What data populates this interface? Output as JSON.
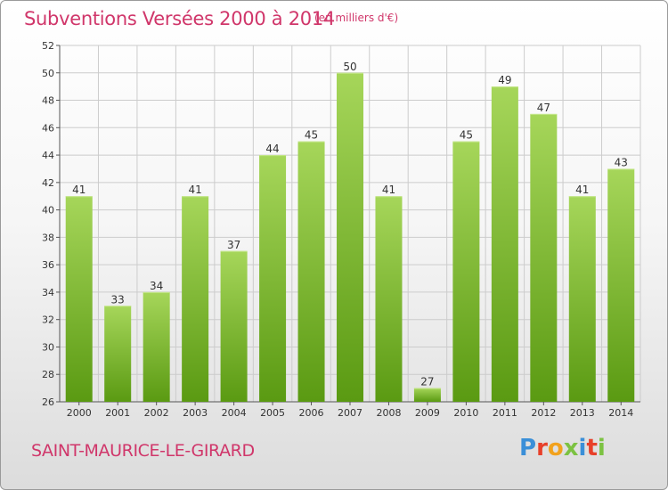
{
  "header": {
    "title": "Subventions Versées 2000 à 2014",
    "unit_note": "(en milliers d'€)"
  },
  "footer": {
    "commune": "SAINT-MAURICE-LE-GIRARD",
    "logo_text": "Proxiti",
    "logo_colors": [
      "#3a8fd8",
      "#e8402a",
      "#f2a21d",
      "#7cc242",
      "#3a8fd8",
      "#e8402a",
      "#7cc242"
    ]
  },
  "colors": {
    "title": "#d0366a",
    "bar_top": "#a6d65a",
    "bar_bottom": "#5a9a12",
    "grid": "#cccccc"
  },
  "chart_data": {
    "type": "bar",
    "categories": [
      "2000",
      "2001",
      "2002",
      "2003",
      "2004",
      "2005",
      "2006",
      "2007",
      "2008",
      "2009",
      "2010",
      "2011",
      "2012",
      "2013",
      "2014"
    ],
    "values": [
      41,
      33,
      34,
      41,
      37,
      44,
      45,
      50,
      41,
      27,
      45,
      49,
      47,
      41,
      43
    ],
    "title": "Subventions Versées 2000 à 2014",
    "ylim": [
      26,
      52
    ],
    "yticks": [
      26,
      28,
      30,
      32,
      34,
      36,
      38,
      40,
      42,
      44,
      46,
      48,
      50,
      52
    ],
    "grid": true,
    "data_labels": true
  }
}
